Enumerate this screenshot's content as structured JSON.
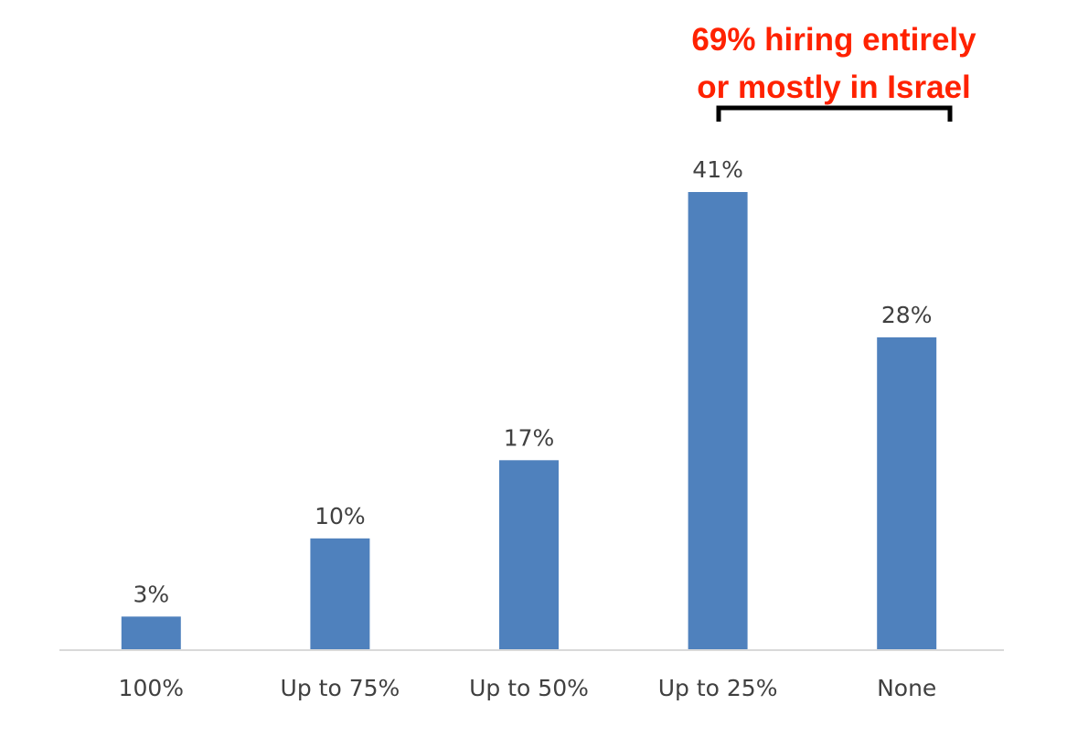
{
  "chart_data": {
    "type": "bar",
    "categories": [
      "100%",
      "Up to 75%",
      "Up to 50%",
      "Up to 25%",
      "None"
    ],
    "values": [
      3,
      10,
      17,
      41,
      28
    ],
    "data_labels": [
      "3%",
      "10%",
      "17%",
      "41%",
      "28%"
    ],
    "title": "",
    "xlabel": "",
    "ylabel": "",
    "ylim": [
      0,
      41
    ],
    "grid": false,
    "legend": "none",
    "annotation": {
      "lines": [
        "69% hiring entirely",
        "or mostly in Israel"
      ],
      "spans_categories": [
        "Up to 25%",
        "None"
      ]
    },
    "colors": {
      "bar": "#4f81bd",
      "annotation": "#ff2200",
      "bracket": "#000000",
      "axis": "#d9d9d9",
      "label_text": "#404040"
    }
  }
}
